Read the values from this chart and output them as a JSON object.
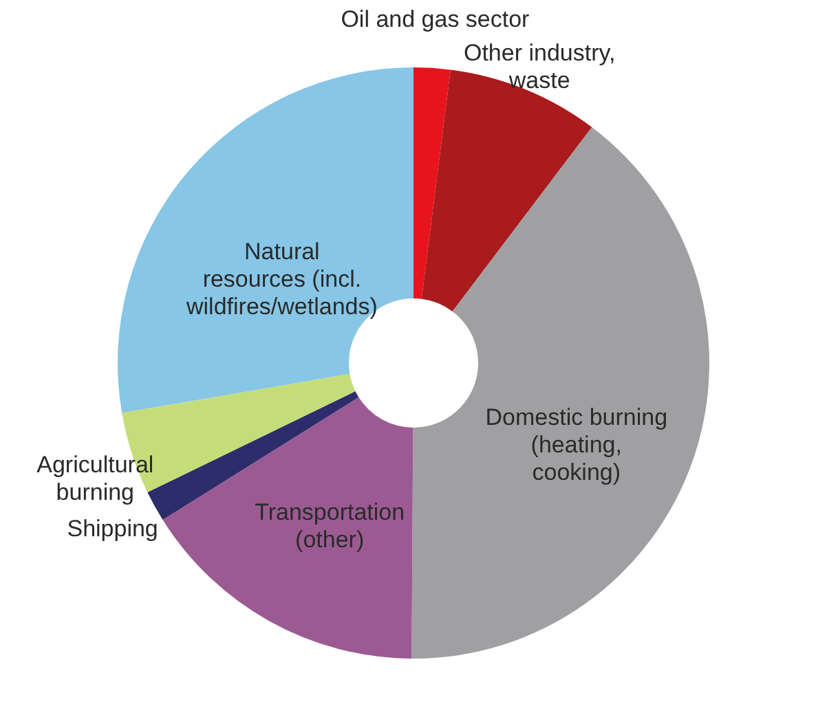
{
  "chart_data": {
    "type": "donut",
    "categories": [
      "Oil and gas sector",
      "Other industry, waste",
      "Domestic burning (heating, cooking)",
      "Transportation (other)",
      "Shipping",
      "Agricultural burning",
      "Natural resources (incl. wildfires/wetlands)"
    ],
    "values": [
      2,
      8.3,
      39.8,
      16,
      1.7,
      4.5,
      27.7
    ],
    "colors": [
      "#e8141b",
      "#a91b1d",
      "#a0a0a2",
      "#9b5b92",
      "#2e2d6b",
      "#c4dd79",
      "#87c6e6"
    ]
  }
}
